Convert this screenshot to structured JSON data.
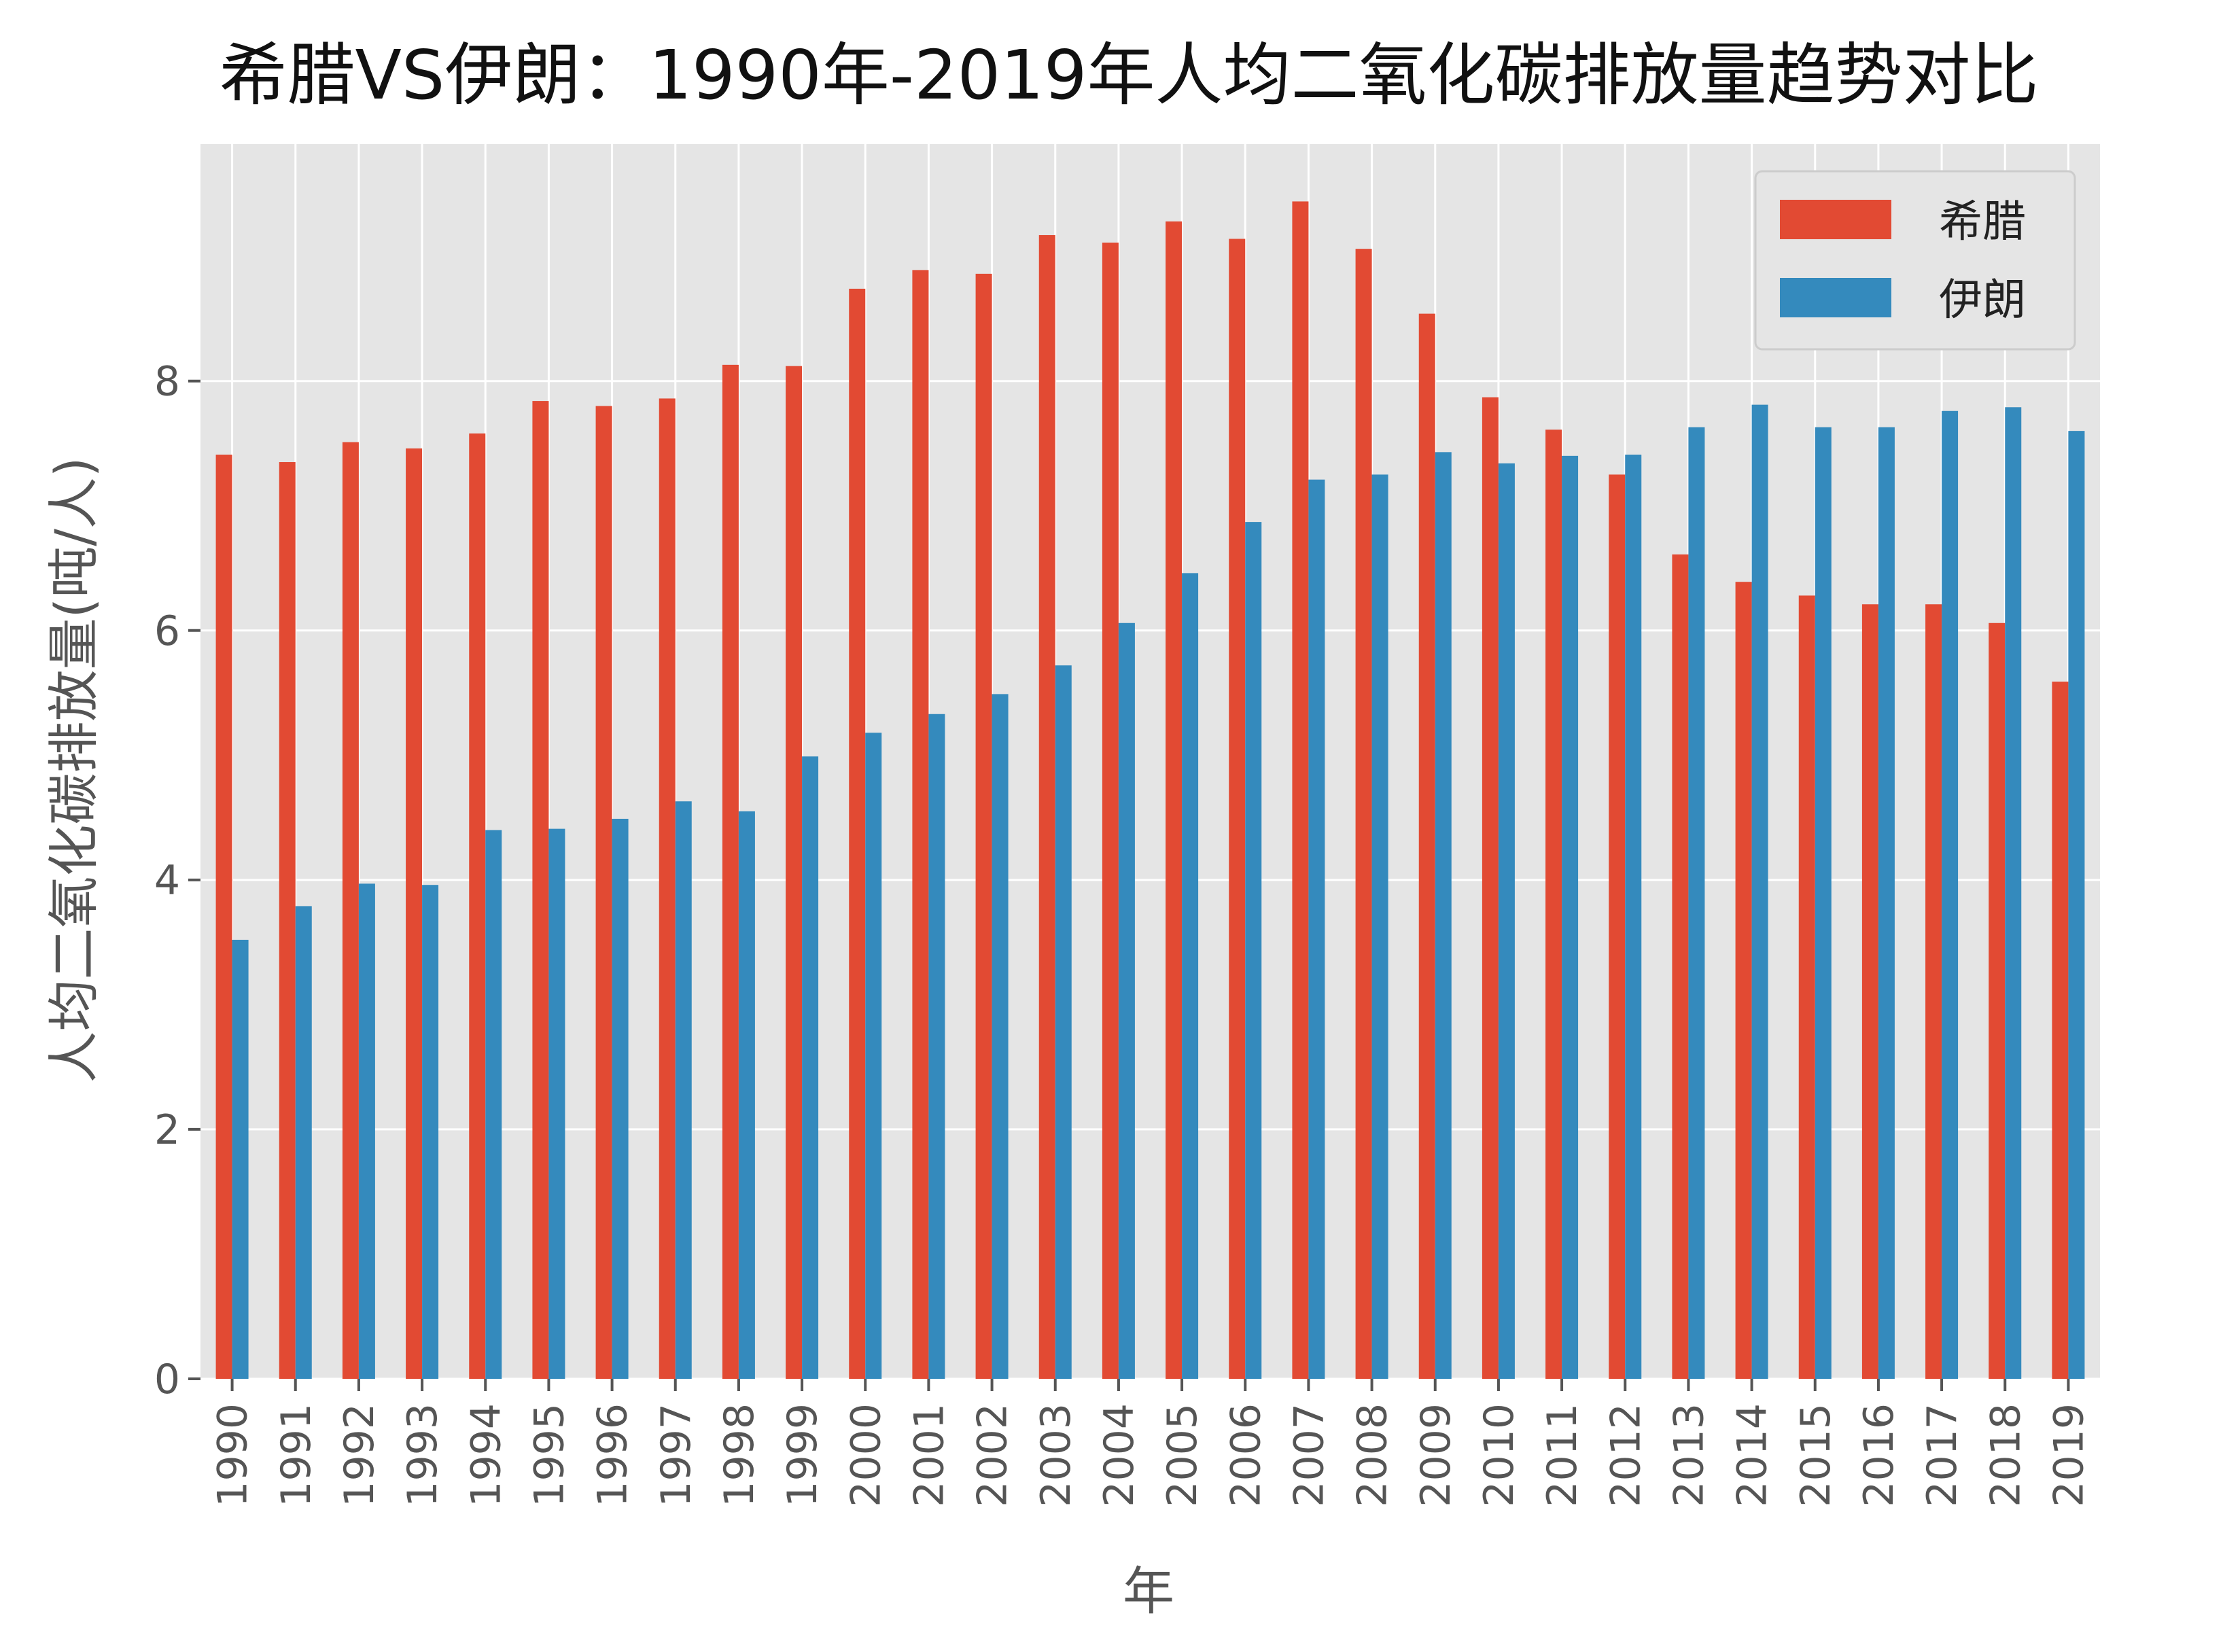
{
  "chart_data": {
    "type": "bar",
    "title": "希腊VS伊朗：1990年-2019年人均二氧化碳排放量趋势对比",
    "xlabel": "年",
    "ylabel": "人均二氧化碳排放量(吨/人)",
    "categories": [
      "1990",
      "1991",
      "1992",
      "1993",
      "1994",
      "1995",
      "1996",
      "1997",
      "1998",
      "1999",
      "2000",
      "2001",
      "2002",
      "2003",
      "2004",
      "2005",
      "2006",
      "2007",
      "2008",
      "2009",
      "2010",
      "2011",
      "2012",
      "2013",
      "2014",
      "2015",
      "2016",
      "2017",
      "2018",
      "2019"
    ],
    "series": [
      {
        "name": "希腊",
        "color": "#E24A33",
        "values": [
          7.41,
          7.35,
          7.51,
          7.46,
          7.58,
          7.84,
          7.8,
          7.86,
          8.13,
          8.12,
          8.74,
          8.89,
          8.86,
          9.17,
          9.11,
          9.28,
          9.14,
          9.44,
          9.06,
          8.54,
          7.87,
          7.61,
          7.25,
          6.61,
          6.39,
          6.28,
          6.21,
          6.21,
          6.06,
          5.59
        ]
      },
      {
        "name": "伊朗",
        "color": "#348ABD",
        "values": [
          3.52,
          3.79,
          3.97,
          3.96,
          4.4,
          4.41,
          4.49,
          4.63,
          4.55,
          4.99,
          5.18,
          5.33,
          5.49,
          5.72,
          6.06,
          6.46,
          6.87,
          7.21,
          7.25,
          7.43,
          7.34,
          7.4,
          7.41,
          7.63,
          7.81,
          7.63,
          7.63,
          7.76,
          7.79,
          7.6
        ]
      }
    ],
    "yticks": [
      "0",
      "2",
      "4",
      "6",
      "8"
    ],
    "ylim": [
      0,
      9.9
    ],
    "grid": true,
    "legend_position": "top-right",
    "plot_background": "#E5E5E5",
    "grid_color": "#FFFFFF"
  }
}
